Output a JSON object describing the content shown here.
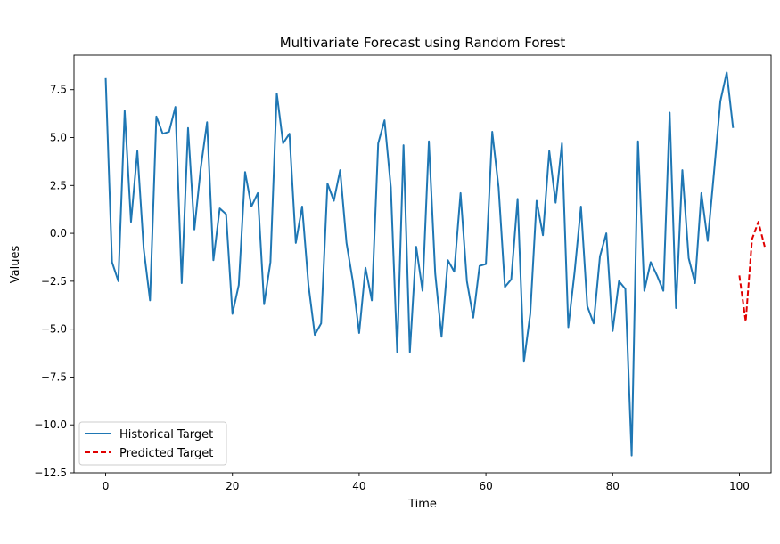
{
  "chart_data": {
    "type": "line",
    "title": "Multivariate Forecast using Random Forest",
    "xlabel": "Time",
    "ylabel": "Values",
    "xlim": [
      -5,
      105
    ],
    "ylim": [
      -12.5,
      9.3
    ],
    "xticks": [
      0,
      20,
      40,
      60,
      80,
      100
    ],
    "yticks": [
      -12.5,
      -10.0,
      -7.5,
      -5.0,
      -2.5,
      0.0,
      2.5,
      5.0,
      7.5
    ],
    "xtick_labels": [
      "0",
      "20",
      "40",
      "60",
      "80",
      "100"
    ],
    "ytick_labels": [
      "−12.5",
      "−10.0",
      "−7.5",
      "−5.0",
      "−2.5",
      "0.0",
      "2.5",
      "5.0",
      "7.5"
    ],
    "legend_position": "lower-left",
    "grid": false,
    "series": [
      {
        "name": "Historical Target",
        "color": "#1f77b4",
        "style": "solid",
        "x": [
          0,
          1,
          2,
          3,
          4,
          5,
          6,
          7,
          8,
          9,
          10,
          11,
          12,
          13,
          14,
          15,
          16,
          17,
          18,
          19,
          20,
          21,
          22,
          23,
          24,
          25,
          26,
          27,
          28,
          29,
          30,
          31,
          32,
          33,
          34,
          35,
          36,
          37,
          38,
          39,
          40,
          41,
          42,
          43,
          44,
          45,
          46,
          47,
          48,
          49,
          50,
          51,
          52,
          53,
          54,
          55,
          56,
          57,
          58,
          59,
          60,
          61,
          62,
          63,
          64,
          65,
          66,
          67,
          68,
          69,
          70,
          71,
          72,
          73,
          74,
          75,
          76,
          77,
          78,
          79,
          80,
          81,
          82,
          83,
          84,
          85,
          86,
          87,
          88,
          89,
          90,
          91,
          92,
          93,
          94,
          95,
          96,
          97,
          98,
          99
        ],
        "y": [
          8.1,
          -1.5,
          -2.5,
          6.4,
          0.6,
          4.3,
          -0.8,
          -3.5,
          6.1,
          5.2,
          5.3,
          6.6,
          -2.6,
          5.5,
          0.2,
          3.4,
          5.8,
          -1.4,
          1.3,
          1.0,
          -4.2,
          -2.7,
          3.2,
          1.4,
          2.1,
          -3.7,
          -1.5,
          7.3,
          4.7,
          5.2,
          -0.5,
          1.4,
          -2.7,
          -5.3,
          -4.7,
          2.6,
          1.7,
          3.3,
          -0.5,
          -2.5,
          -5.2,
          -1.8,
          -3.5,
          4.7,
          5.9,
          2.4,
          -6.2,
          4.6,
          -6.2,
          -0.7,
          -3.0,
          4.8,
          -2.1,
          -5.4,
          -1.4,
          -2.0,
          2.1,
          -2.5,
          -4.4,
          -1.7,
          -1.6,
          5.3,
          2.4,
          -2.8,
          -2.4,
          1.8,
          -6.7,
          -4.2,
          1.7,
          -0.1,
          4.3,
          1.6,
          4.7,
          -4.9,
          -2.0,
          1.4,
          -3.8,
          -4.7,
          -1.2,
          0.0,
          -5.1,
          -2.5,
          -2.9,
          -11.6,
          4.8,
          -3.0,
          -1.5,
          -2.2,
          -3.0,
          6.3,
          -3.9,
          3.3,
          -1.3,
          -2.6,
          2.1,
          -0.4,
          3.2,
          6.9,
          8.4,
          5.5
        ]
      },
      {
        "name": "Predicted Target",
        "color": "#e00000",
        "style": "dashed",
        "x": [
          100,
          101,
          102,
          103,
          104
        ],
        "y": [
          -2.2,
          -4.6,
          -0.3,
          0.6,
          -0.7
        ]
      }
    ]
  }
}
